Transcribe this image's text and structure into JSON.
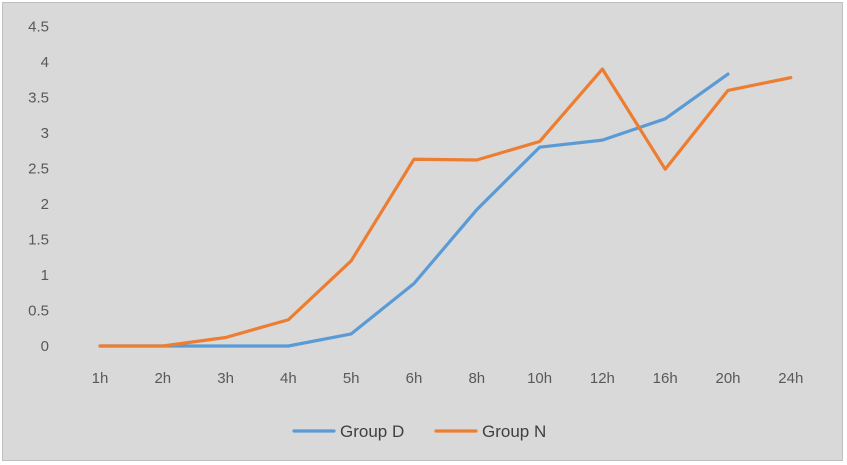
{
  "chart_data": {
    "type": "line",
    "title": "",
    "xlabel": "",
    "ylabel": "",
    "categories": [
      "1h",
      "2h",
      "3h",
      "4h",
      "5h",
      "6h",
      "8h",
      "10h",
      "12h",
      "16h",
      "20h",
      "24h"
    ],
    "ylim": [
      0,
      4.5
    ],
    "yticks": [
      "0",
      "0.5",
      "1",
      "1.5",
      "2",
      "2.5",
      "3",
      "3.5",
      "4",
      "4.5"
    ],
    "grid": false,
    "legend_position": "bottom",
    "series": [
      {
        "name": "Group D",
        "color": "#5b9bd5",
        "values": [
          0,
          0,
          0,
          0,
          0.17,
          0.88,
          1.92,
          2.8,
          2.9,
          3.2,
          3.83,
          null
        ]
      },
      {
        "name": "Group N",
        "color": "#ed7d31",
        "values": [
          0,
          0,
          0.12,
          0.37,
          1.2,
          2.63,
          2.62,
          2.88,
          3.9,
          2.49,
          3.6,
          3.78
        ]
      }
    ]
  }
}
